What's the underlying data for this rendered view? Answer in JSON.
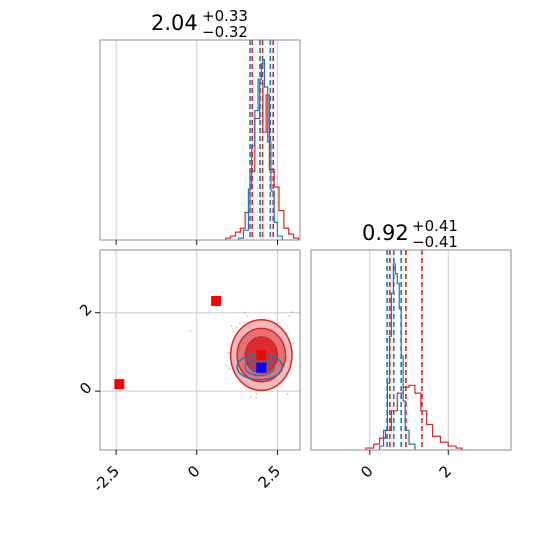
{
  "colors": {
    "red": "#d62728",
    "red_fill_dark": "#d8262b",
    "red_fill_mid": "#e66a6d",
    "red_fill_light": "#f3b1b2",
    "blue": "#1f77b4",
    "marker_red": "#ff0000",
    "marker_blue": "#0000ff",
    "grid": "#cccccc",
    "spine": "#808080"
  },
  "titles": {
    "p1": {
      "center": "2.04",
      "plus": "+0.33",
      "minus": "−0.32"
    },
    "p2": {
      "center": "0.92",
      "plus": "+0.41",
      "minus": "−0.41"
    }
  },
  "chart_data": [
    {
      "type": "histogram",
      "panel": "top-left",
      "x_range": [
        -3.0,
        3.2
      ],
      "x_ticks": [
        -2.5,
        0.0,
        2.5
      ],
      "grid": true,
      "series": [
        {
          "color": "red",
          "style": "step",
          "bins": [
            [
              0.9,
              0.01
            ],
            [
              1.05,
              0.02
            ],
            [
              1.2,
              0.04
            ],
            [
              1.35,
              0.06
            ],
            [
              1.5,
              0.14
            ],
            [
              1.65,
              0.35
            ],
            [
              1.8,
              0.62
            ],
            [
              1.95,
              0.8
            ],
            [
              2.05,
              0.55
            ],
            [
              2.15,
              0.74
            ],
            [
              2.25,
              0.36
            ],
            [
              2.4,
              0.27
            ],
            [
              2.55,
              0.15
            ],
            [
              2.7,
              0.06
            ],
            [
              2.85,
              0.03
            ],
            [
              3.0,
              0.01
            ]
          ],
          "quantile_lines": [
            1.72,
            2.04,
            2.37
          ]
        },
        {
          "color": "blue",
          "style": "step",
          "bins": [
            [
              1.3,
              0.01
            ],
            [
              1.45,
              0.05
            ],
            [
              1.6,
              0.26
            ],
            [
              1.7,
              0.48
            ],
            [
              1.8,
              0.66
            ],
            [
              1.9,
              0.82
            ],
            [
              2.0,
              0.9
            ],
            [
              2.05,
              0.92
            ],
            [
              2.1,
              0.78
            ],
            [
              2.2,
              0.5
            ],
            [
              2.3,
              0.25
            ],
            [
              2.4,
              0.09
            ],
            [
              2.5,
              0.02
            ]
          ],
          "quantile_lines": [
            1.65,
            1.96,
            2.28
          ]
        }
      ]
    },
    {
      "type": "contour",
      "panel": "bottom-left",
      "x_range": [
        -3.0,
        3.2
      ],
      "y_range": [
        -1.5,
        3.6
      ],
      "x_ticks": [
        -2.5,
        0.0,
        2.5
      ],
      "y_ticks": [
        0,
        2
      ],
      "grid": true,
      "series": [
        {
          "color": "red",
          "center": [
            2.0,
            0.92
          ],
          "sigma_levels": [
            [
              0.95,
              0.9
            ],
            [
              0.75,
              0.68
            ],
            [
              0.5,
              0.46
            ]
          ]
        },
        {
          "color": "blue",
          "center": [
            1.95,
            0.62
          ],
          "sigma_levels": [
            [
              0.7,
              0.33
            ],
            [
              0.45,
              0.22
            ],
            [
              0.3,
              0.14
            ]
          ]
        }
      ],
      "markers": [
        {
          "color": "marker_red",
          "x": 0.6,
          "y": 2.3
        },
        {
          "color": "marker_red",
          "x": -2.4,
          "y": 0.18
        },
        {
          "color": "marker_red",
          "x": 2.0,
          "y": 0.92
        },
        {
          "color": "marker_blue",
          "x": 2.0,
          "y": 0.6
        }
      ]
    },
    {
      "type": "histogram",
      "panel": "bottom-right",
      "x_range": [
        -1.5,
        3.6
      ],
      "x_ticks": [
        0,
        2
      ],
      "grid": true,
      "series": [
        {
          "color": "red",
          "style": "step",
          "bins": [
            [
              -0.1,
              0.01
            ],
            [
              0.1,
              0.03
            ],
            [
              0.25,
              0.06
            ],
            [
              0.4,
              0.1
            ],
            [
              0.55,
              0.2
            ],
            [
              0.7,
              0.29
            ],
            [
              0.85,
              0.32
            ],
            [
              1.0,
              0.33
            ],
            [
              1.15,
              0.29
            ],
            [
              1.3,
              0.2
            ],
            [
              1.45,
              0.13
            ],
            [
              1.6,
              0.07
            ],
            [
              1.8,
              0.04
            ],
            [
              2.0,
              0.02
            ],
            [
              2.2,
              0.01
            ]
          ],
          "quantile_lines": [
            0.51,
            0.92,
            1.33
          ]
        },
        {
          "color": "blue",
          "style": "step",
          "bins": [
            [
              0.25,
              0.02
            ],
            [
              0.35,
              0.1
            ],
            [
              0.45,
              0.34
            ],
            [
              0.5,
              0.58
            ],
            [
              0.55,
              0.8
            ],
            [
              0.6,
              0.95
            ],
            [
              0.65,
              0.9
            ],
            [
              0.7,
              0.85
            ],
            [
              0.75,
              0.72
            ],
            [
              0.8,
              0.48
            ],
            [
              0.85,
              0.25
            ],
            [
              0.9,
              0.1
            ],
            [
              1.0,
              0.03
            ]
          ],
          "quantile_lines": [
            0.44,
            0.61,
            0.8
          ]
        }
      ]
    }
  ]
}
